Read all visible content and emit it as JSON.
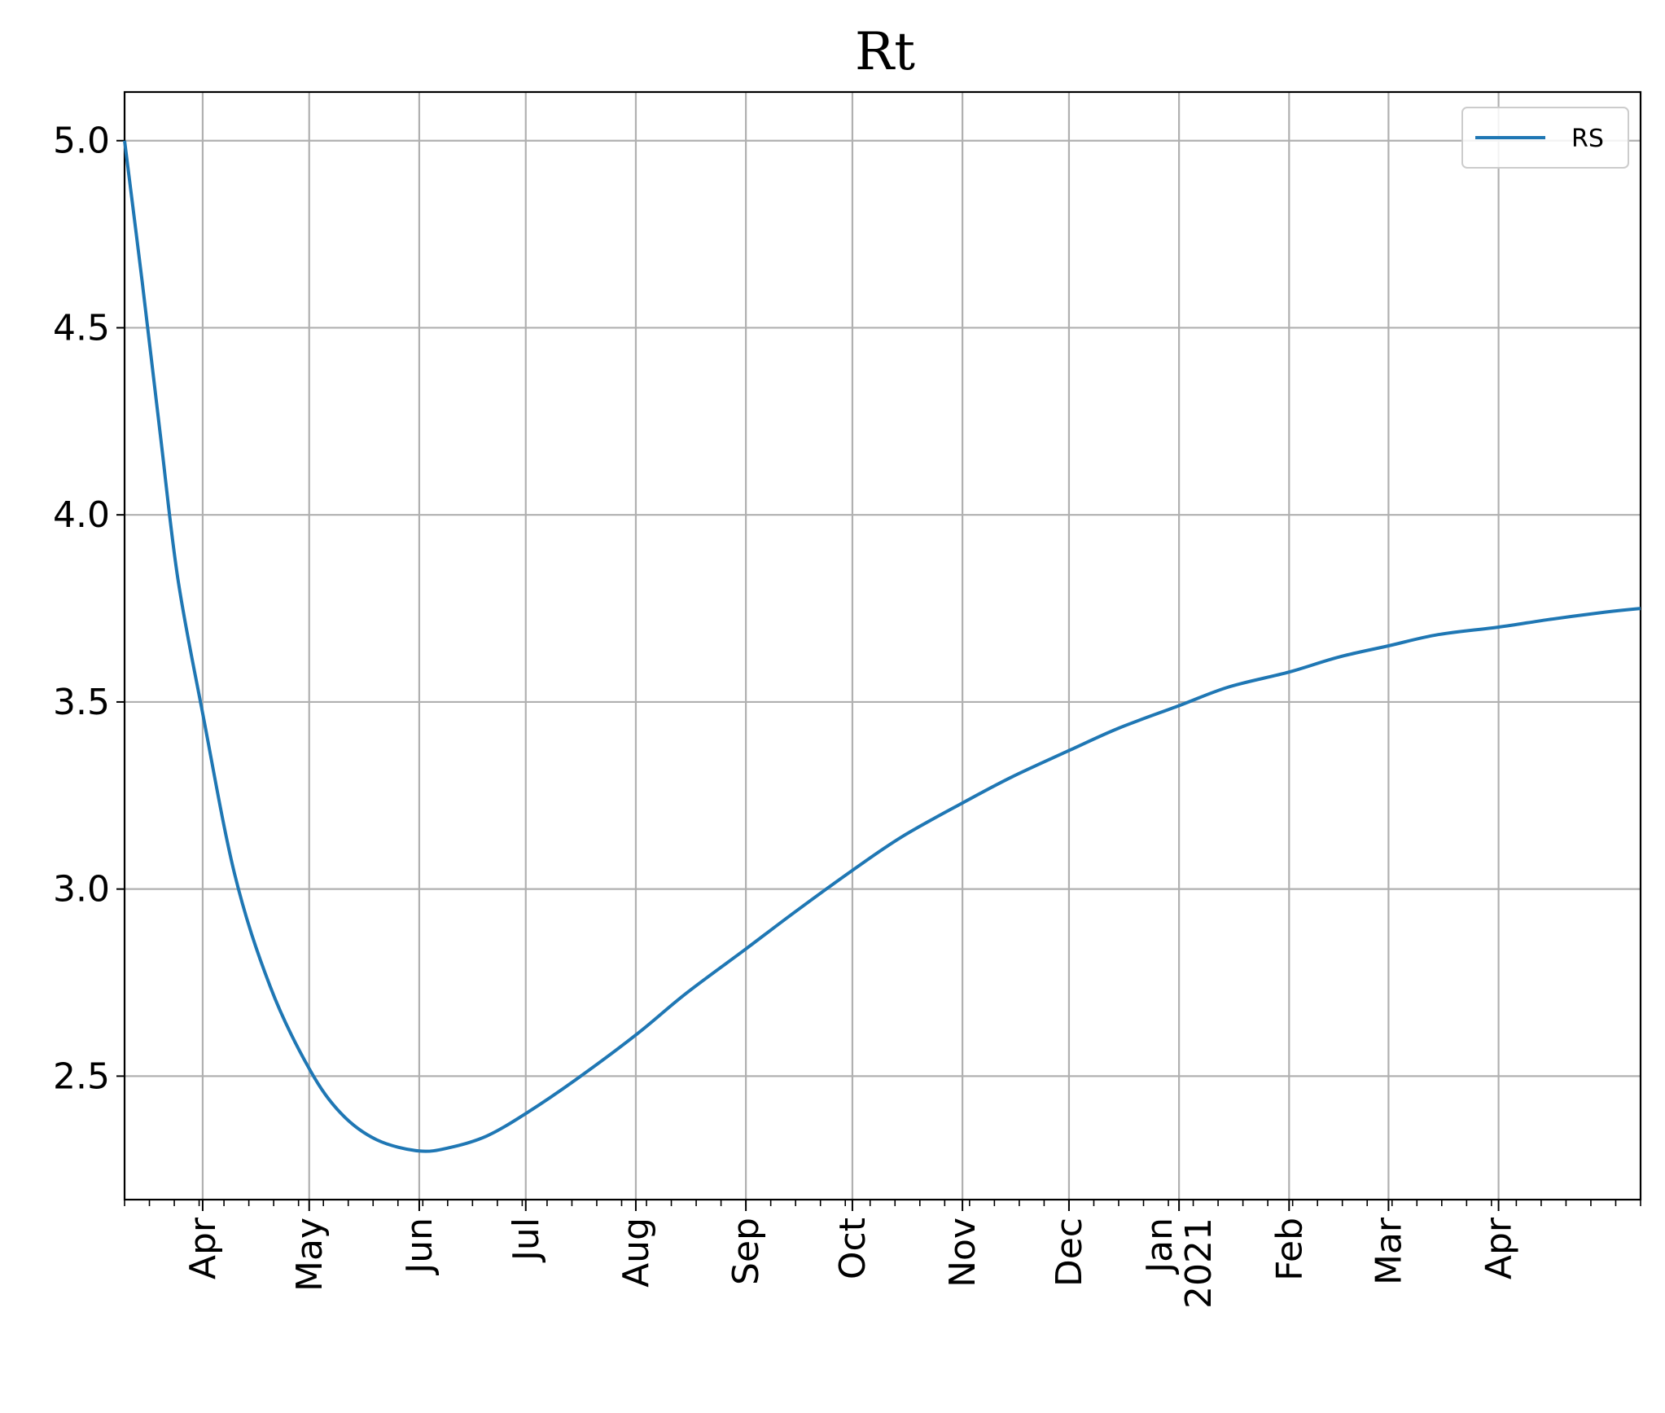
{
  "chart_data": {
    "type": "line",
    "title": "Rt",
    "xlabel": "",
    "ylabel": "",
    "xlim": [
      "2020-03-10",
      "2021-05-11"
    ],
    "ylim": [
      2.17,
      5.13
    ],
    "grid": true,
    "legend_position": "upper right",
    "y_ticks": [
      2.5,
      3.0,
      3.5,
      4.0,
      4.5,
      5.0
    ],
    "y_tick_labels": [
      "2.5",
      "3.0",
      "3.5",
      "4.0",
      "4.5",
      "5.0"
    ],
    "x_ticks": [
      {
        "date": "2020-04-01",
        "label": "Apr"
      },
      {
        "date": "2020-05-01",
        "label": "May"
      },
      {
        "date": "2020-06-01",
        "label": "Jun"
      },
      {
        "date": "2020-07-01",
        "label": "Jul"
      },
      {
        "date": "2020-08-01",
        "label": "Aug"
      },
      {
        "date": "2020-09-01",
        "label": "Sep"
      },
      {
        "date": "2020-10-01",
        "label": "Oct"
      },
      {
        "date": "2020-11-01",
        "label": "Nov"
      },
      {
        "date": "2020-12-01",
        "label": "Dec"
      },
      {
        "date": "2021-01-01",
        "label": "Jan\n2021"
      },
      {
        "date": "2021-02-01",
        "label": "Feb"
      },
      {
        "date": "2021-03-01",
        "label": "Mar"
      },
      {
        "date": "2021-04-01",
        "label": "Apr"
      }
    ],
    "series": [
      {
        "name": "RS",
        "color": "#1f77b4",
        "x": [
          "2020-03-10",
          "2020-03-15",
          "2020-03-20",
          "2020-03-25",
          "2020-04-01",
          "2020-04-10",
          "2020-04-20",
          "2020-05-01",
          "2020-05-10",
          "2020-05-20",
          "2020-06-01",
          "2020-06-10",
          "2020-06-20",
          "2020-07-01",
          "2020-07-15",
          "2020-08-01",
          "2020-08-15",
          "2020-09-01",
          "2020-09-15",
          "2020-10-01",
          "2020-10-15",
          "2020-11-01",
          "2020-11-15",
          "2020-12-01",
          "2020-12-15",
          "2021-01-01",
          "2021-01-15",
          "2021-02-01",
          "2021-02-15",
          "2021-03-01",
          "2021-03-15",
          "2021-04-01",
          "2021-04-15",
          "2021-05-01",
          "2021-05-11"
        ],
        "y": [
          5.0,
          4.62,
          4.22,
          3.83,
          3.47,
          3.04,
          2.74,
          2.52,
          2.4,
          2.33,
          2.3,
          2.31,
          2.34,
          2.4,
          2.49,
          2.61,
          2.72,
          2.84,
          2.94,
          3.05,
          3.14,
          3.23,
          3.3,
          3.37,
          3.43,
          3.49,
          3.54,
          3.58,
          3.62,
          3.65,
          3.68,
          3.7,
          3.72,
          3.74,
          3.75
        ]
      }
    ]
  }
}
